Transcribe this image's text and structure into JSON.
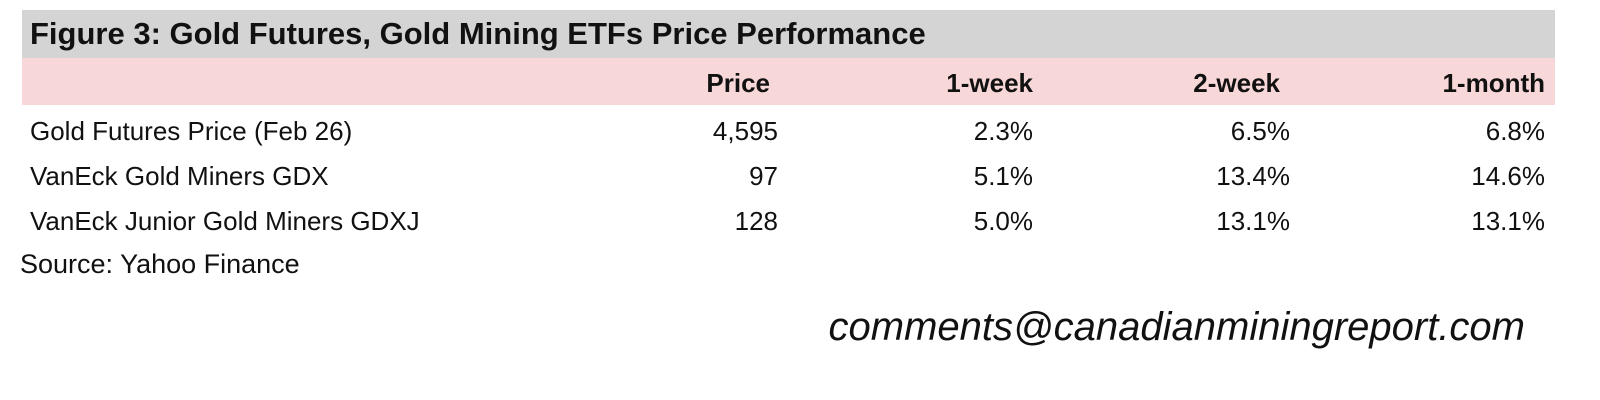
{
  "header": {
    "title": "Figure 3: Gold Futures, Gold Mining ETFs Price Performance"
  },
  "table": {
    "columns": [
      "Price",
      "1-week",
      "2-week",
      "1-month"
    ],
    "rows": [
      [
        "Gold Futures Price (Feb 26)",
        "4,595",
        "2.3%",
        "6.5%",
        "6.8%"
      ],
      [
        "VanEck Gold Miners GDX",
        "97",
        "5.1%",
        "13.4%",
        "14.6%"
      ],
      [
        "VanEck Junior Gold Miners GDXJ",
        "128",
        "5.0%",
        "13.1%",
        "13.1%"
      ]
    ]
  },
  "source": "Source: Yahoo Finance",
  "email": "comments@canadianminingreport.com"
}
